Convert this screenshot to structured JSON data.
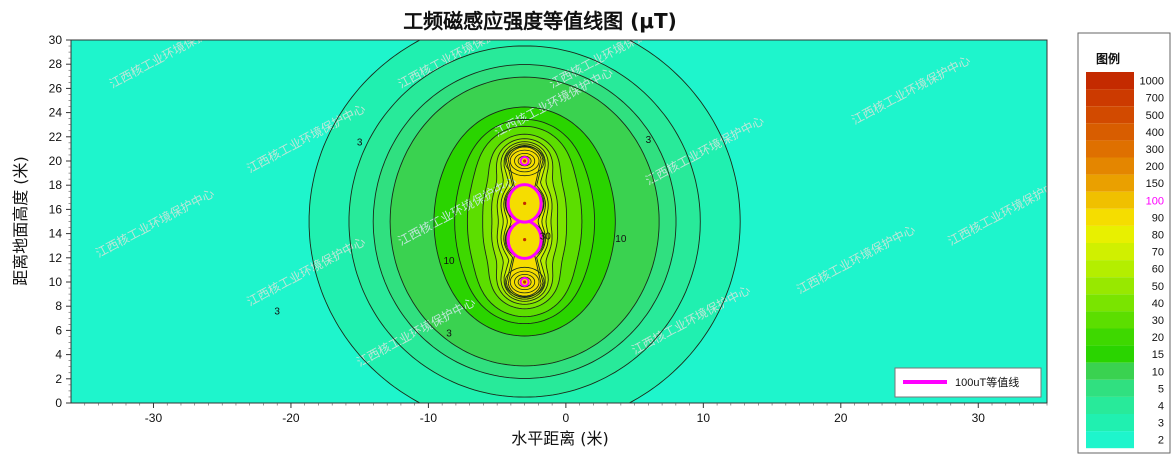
{
  "chart_data": {
    "type": "heatmap",
    "title": "工频磁感应强度等值线图 (μT)",
    "xlabel": "水平距离 (米)",
    "ylabel": "距离地面高度 (米)",
    "xlim": [
      -36,
      35
    ],
    "ylim": [
      0,
      30
    ],
    "x_ticks": [
      "-30",
      "-20",
      "-10",
      "0",
      "10",
      "20",
      "30"
    ],
    "y_ticks": [
      "0",
      "2",
      "4",
      "6",
      "8",
      "10",
      "12",
      "14",
      "16",
      "18",
      "20",
      "22",
      "24",
      "26",
      "28",
      "30"
    ],
    "conductors": [
      {
        "x": -3,
        "y": 10
      },
      {
        "x": -3,
        "y": 13.5
      },
      {
        "x": -3,
        "y": 16.5
      },
      {
        "x": -3,
        "y": 20
      }
    ],
    "contour_labels": [
      {
        "text": "3",
        "x": -15,
        "y": 21.3
      },
      {
        "text": "3",
        "x": 6,
        "y": 21.5
      },
      {
        "text": "3",
        "x": -21,
        "y": 7.3
      },
      {
        "text": "3",
        "x": -8.5,
        "y": 5.5
      },
      {
        "text": "10",
        "x": -8.5,
        "y": 11.5
      },
      {
        "text": "10",
        "x": 4,
        "y": 13.3
      },
      {
        "text": "30",
        "x": -1.5,
        "y": 13.5
      }
    ],
    "annotation_legend": {
      "label": "100uT等值线",
      "color": "#ff00ff"
    },
    "colorbar": {
      "title": "图例",
      "levels": [
        "1000",
        "700",
        "500",
        "400",
        "300",
        "200",
        "150",
        "100",
        "90",
        "80",
        "70",
        "60",
        "50",
        "40",
        "30",
        "20",
        "15",
        "10",
        "5",
        "4",
        "3",
        "2"
      ],
      "colors": [
        "#c42a00",
        "#cc3a00",
        "#d24a00",
        "#d85d00",
        "#df7000",
        "#e48600",
        "#eaa000",
        "#f0c000",
        "#f5dd00",
        "#e8f000",
        "#d0f000",
        "#b4ee00",
        "#98e800",
        "#7ae400",
        "#5cde00",
        "#3ed800",
        "#2ad400",
        "#3ad250",
        "#30e080",
        "#28ea9a",
        "#20f0b0",
        "#1ef5cc"
      ],
      "highlight_level": "100",
      "highlight_color": "#ff00ff"
    },
    "watermark": "江西核工业环境保护中心",
    "grid": false
  }
}
